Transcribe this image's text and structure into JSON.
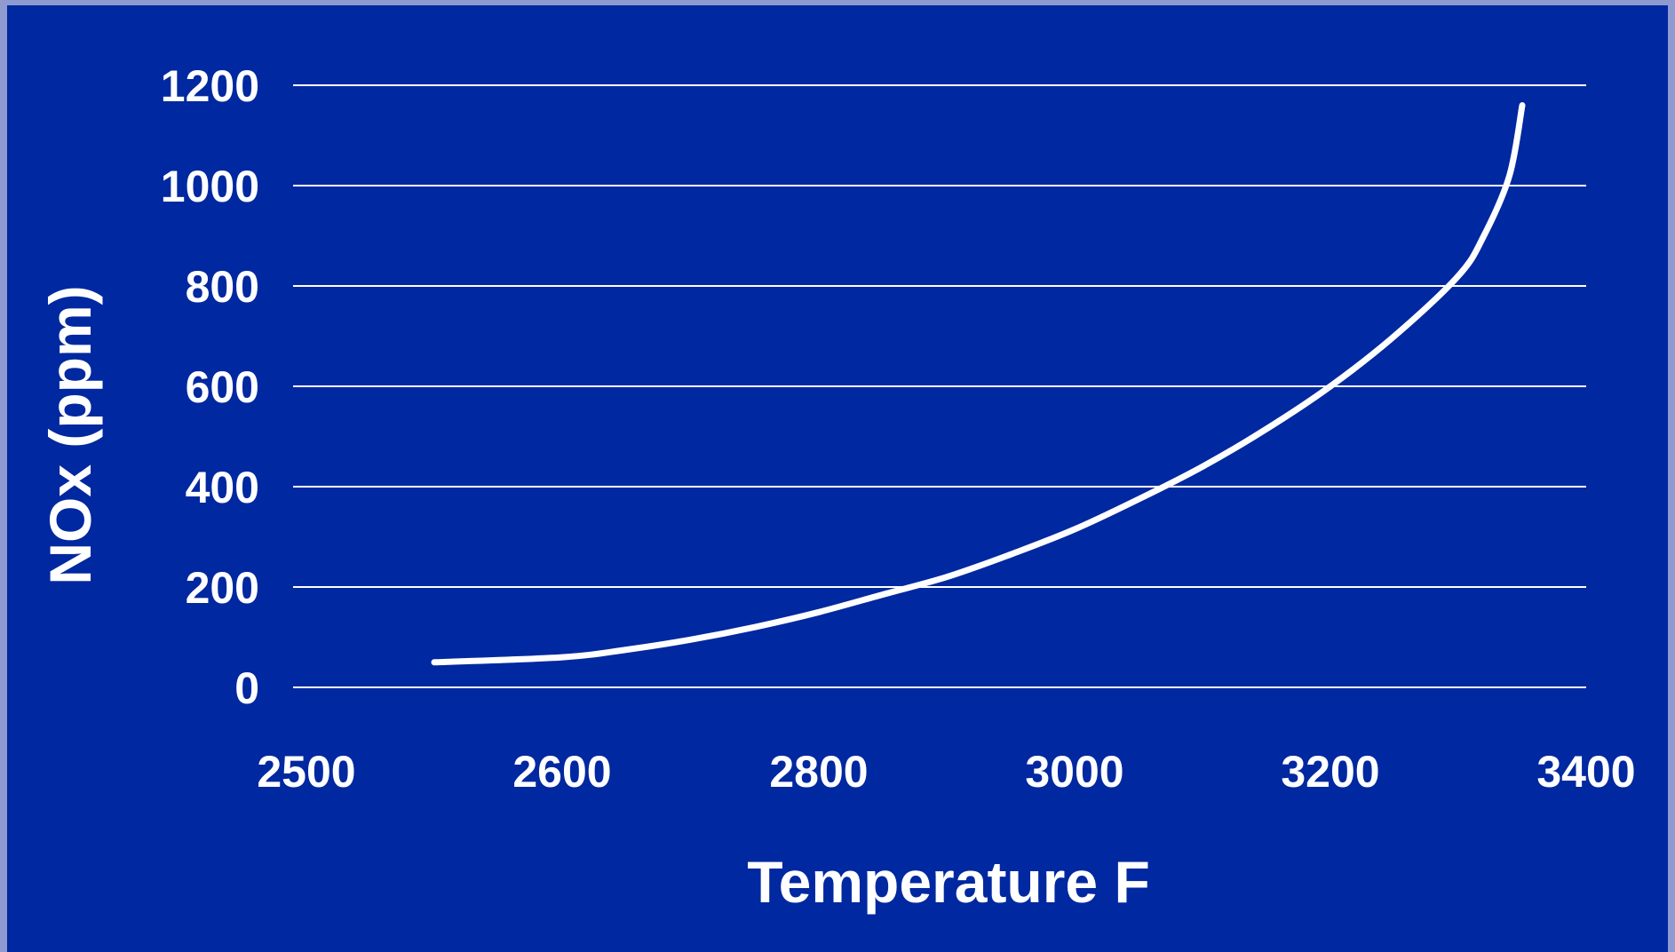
{
  "colors": {
    "background": "#0028a0",
    "border": "#8e9ad0",
    "foreground": "#ffffff"
  },
  "chart_data": {
    "type": "line",
    "title": "",
    "xlabel": "Temperature F",
    "ylabel": "NOx (ppm)",
    "x_tick_labels": [
      "2500",
      "2600",
      "2800",
      "3000",
      "3200",
      "3400"
    ],
    "y_ticks": [
      0,
      200,
      400,
      600,
      800,
      1000,
      1200
    ],
    "ylim": [
      0,
      1200
    ],
    "grid": true,
    "legend": "none",
    "series": [
      {
        "x": [
          2550,
          2600,
          2650,
          2700,
          2750,
          2800,
          2850,
          2900,
          2950,
          3000,
          3050,
          3100,
          3150,
          3200,
          3250,
          3300,
          3320,
          3340,
          3350
        ],
        "y": [
          50,
          60,
          75,
          95,
          120,
          150,
          185,
          220,
          265,
          315,
          375,
          440,
          515,
          600,
          700,
          820,
          900,
          1020,
          1160
        ]
      }
    ]
  }
}
